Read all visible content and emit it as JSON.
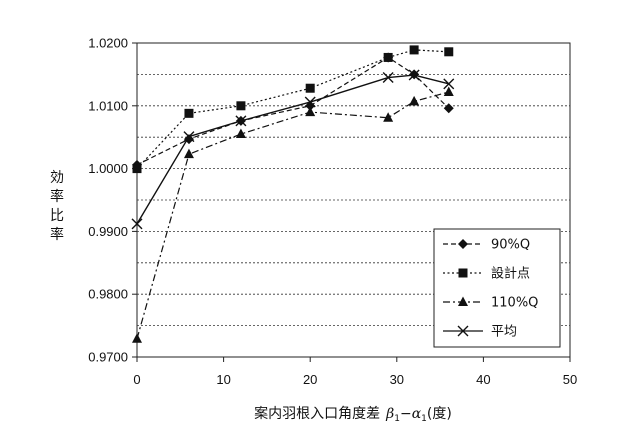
{
  "chart_data": {
    "type": "line",
    "title": "",
    "xlabel": "案内羽根入口角度差 β1−α1(度)",
    "xlabel_main": "案内羽根入口角度差",
    "xlabel_beta": "β",
    "xlabel_alpha": "α",
    "xlabel_sub": "1",
    "xlabel_minus": "−",
    "xlabel_unit": "(度)",
    "ylabel": "効率比率",
    "ylabel_chars": [
      "効",
      "率",
      "比",
      "率"
    ],
    "xlim": [
      0,
      50
    ],
    "ylim": [
      0.97,
      1.02
    ],
    "xticks": [
      "0",
      "10",
      "20",
      "30",
      "40",
      "50"
    ],
    "yticks": [
      "0.9700",
      "0.9800",
      "0.9900",
      "1.0000",
      "1.0100",
      "1.0200"
    ],
    "grid": "horizontal dashed",
    "legend_position": "lower-right",
    "series": [
      {
        "name": "90%Q",
        "marker": "diamond",
        "line": "dashed",
        "x": [
          0,
          6,
          12,
          20,
          29,
          32,
          36
        ],
        "y": [
          1.0006,
          1.0047,
          1.0076,
          1.01,
          1.0177,
          1.015,
          1.0096
        ]
      },
      {
        "name": "設計点",
        "marker": "square",
        "line": "dotted",
        "x": [
          0,
          6,
          12,
          20,
          29,
          32,
          36
        ],
        "y": [
          1.0,
          1.0088,
          1.01,
          1.0128,
          1.0177,
          1.0189,
          1.0186
        ]
      },
      {
        "name": "110%Q",
        "marker": "triangle",
        "line": "dashdot",
        "x": [
          0,
          6,
          12,
          20,
          29,
          32,
          36
        ],
        "y": [
          0.9729,
          1.0023,
          1.0055,
          1.009,
          1.0081,
          1.0107,
          1.0122
        ]
      },
      {
        "name": "平均",
        "marker": "x",
        "line": "solid",
        "x": [
          0,
          6,
          12,
          20,
          29,
          32,
          36
        ],
        "y": [
          0.9912,
          1.0051,
          1.0076,
          1.0106,
          1.0145,
          1.0149,
          1.0135
        ]
      }
    ]
  }
}
